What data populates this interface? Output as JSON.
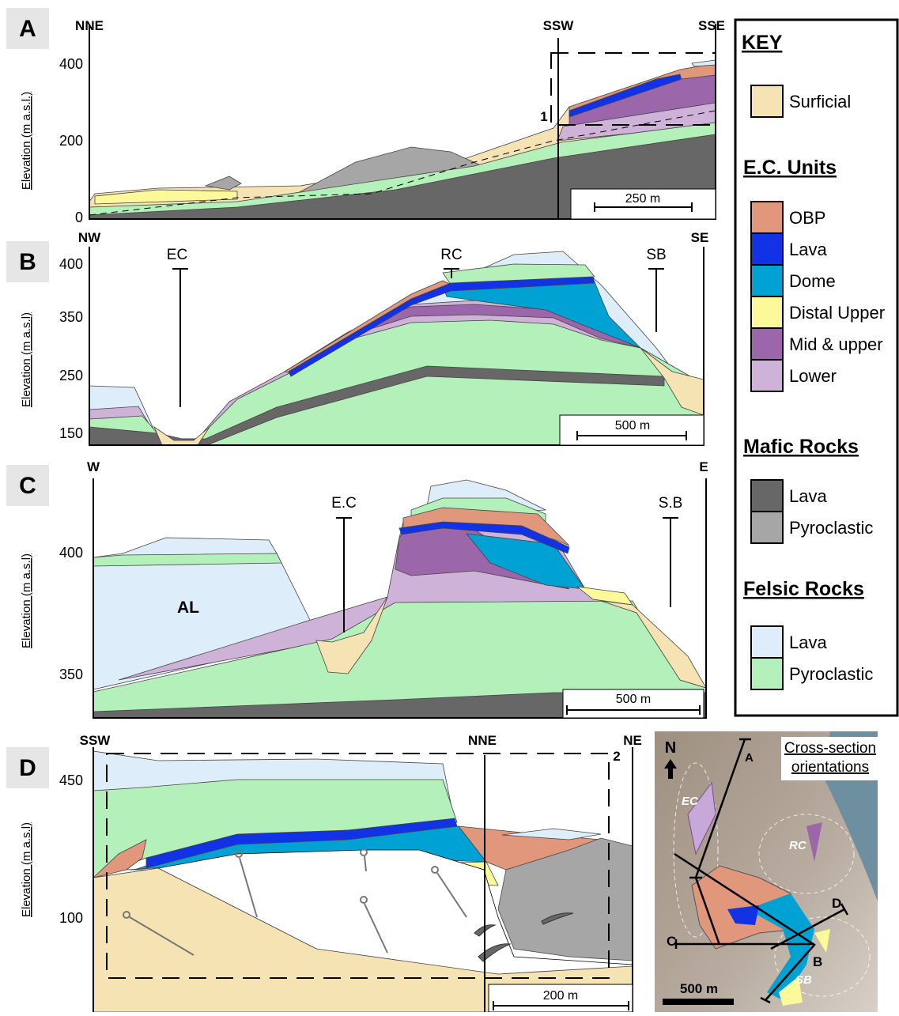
{
  "panels": [
    {
      "letter": "A",
      "left": "NNE",
      "mid": "SSW",
      "right": "SSE",
      "axis_label": "Elevation (m a.s.l.)",
      "ticks": [
        "400",
        "200",
        "0"
      ],
      "box": "1",
      "scale": "250 m"
    },
    {
      "letter": "B",
      "left": "NW",
      "right": "SE",
      "axis_label": "Elevation (m a.s.l)",
      "ticks": [
        "400",
        "350",
        "250",
        "150"
      ],
      "places": [
        "EC",
        "RC",
        "SB"
      ],
      "scale": "500 m"
    },
    {
      "letter": "C",
      "left": "W",
      "right": "E",
      "axis_label": "Elevation (m a.s.l)",
      "ticks": [
        "400",
        "350"
      ],
      "places": [
        "E.C",
        "S.B",
        "AL"
      ],
      "scale": "500 m"
    },
    {
      "letter": "D",
      "left": "SSW",
      "mid": "NNE",
      "right": "NE",
      "axis_label": "Elevation (m a.s.l)",
      "ticks": [
        "450",
        "100"
      ],
      "box": "2",
      "scale": "200 m"
    }
  ],
  "key": {
    "title": "KEY",
    "groups": [
      {
        "items": [
          {
            "label": "Surficial",
            "color": "#f6e3b4"
          }
        ]
      },
      {
        "title": "E.C. Units",
        "items": [
          {
            "label": "OBP",
            "color": "#e0977c"
          },
          {
            "label": "Lava",
            "color": "#1232e6"
          },
          {
            "label": "Dome",
            "color": "#00a2d3"
          },
          {
            "label": "Distal Upper",
            "color": "#fcf99b"
          },
          {
            "label": "Mid & upper",
            "color": "#9c66aa"
          },
          {
            "label": "Lower",
            "color": "#cfb2d8"
          }
        ]
      },
      {
        "title": "Mafic Rocks",
        "items": [
          {
            "label": "Lava",
            "color": "#676767"
          },
          {
            "label": "Pyroclastic",
            "color": "#a6a6a6"
          }
        ]
      },
      {
        "title": "Felsic Rocks",
        "items": [
          {
            "label": "Lava",
            "color": "#ddeefa"
          },
          {
            "label": "Pyroclastic",
            "color": "#b4f0b9"
          }
        ]
      }
    ]
  },
  "map": {
    "title": [
      "Cross-section",
      "orientations"
    ],
    "north": "N",
    "scale": "500 m",
    "labels": [
      "A",
      "B",
      "C",
      "D",
      "EC",
      "RC",
      "SB"
    ]
  }
}
